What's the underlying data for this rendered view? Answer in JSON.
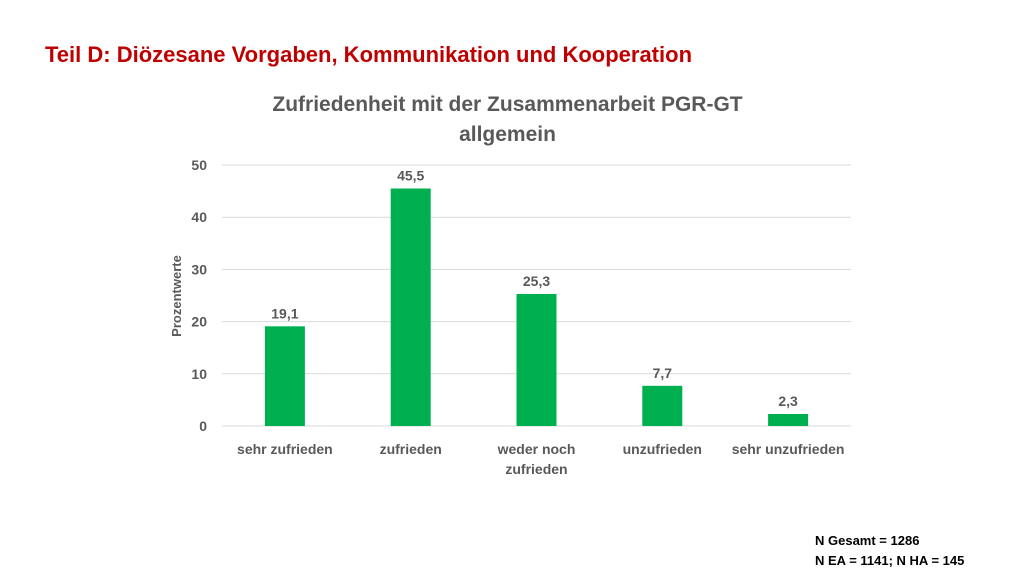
{
  "slide": {
    "title": "Teil D: Diözesane Vorgaben, Kommunikation und Kooperation"
  },
  "notes": {
    "line1": "N Gesamt = 1286",
    "line2": "N EA = 1141; N HA = 145"
  },
  "colors": {
    "bar": "#00b050",
    "slide_title": "#c00000",
    "text": "#595959",
    "grid": "#d9d9d9"
  },
  "chart_data": {
    "type": "bar",
    "title_lines": [
      "Zufriedenheit mit der Zusammenarbeit PGR-GT",
      "allgemein"
    ],
    "categories": [
      [
        "sehr zufrieden"
      ],
      [
        "zufrieden"
      ],
      [
        "weder noch",
        "zufrieden"
      ],
      [
        "unzufrieden"
      ],
      [
        "sehr unzufrieden"
      ]
    ],
    "values": [
      19.1,
      45.5,
      25.3,
      7.7,
      2.3
    ],
    "value_labels": [
      "19,1",
      "45,5",
      "25,3",
      "7,7",
      "2,3"
    ],
    "ylabel": "Prozentwerte",
    "ylim": [
      0,
      50
    ],
    "yticks": [
      0,
      10,
      20,
      30,
      40,
      50
    ],
    "grid": true,
    "legend": "none"
  }
}
